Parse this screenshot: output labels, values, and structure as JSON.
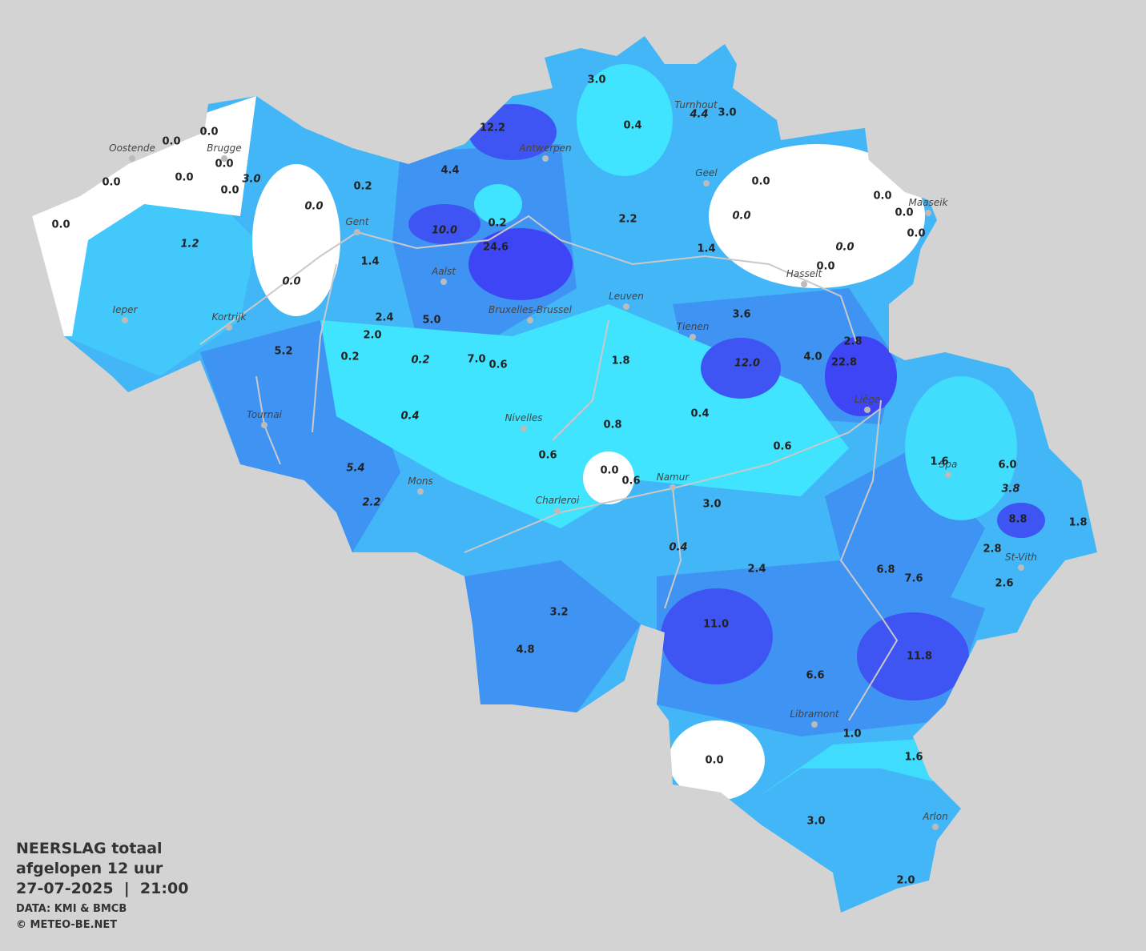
{
  "title": {
    "line1": "NEERSLAG totaal",
    "line2": "afgelopen 12 uur",
    "datetime": "27-07-2025  |  21:00"
  },
  "credits": [
    "DATA: KMI & BMCB",
    "© METEO-BE.NET"
  ],
  "cities": [
    "Oostende",
    "Brugge",
    "Antwerpen",
    "Turnhout",
    "Geel",
    "Maaseik",
    "Gent",
    "Aalst",
    "Hasselt",
    "Leuven",
    "Ieper",
    "Kortrijk",
    "Bruxelles-Brussel",
    "Tienen",
    "Liège",
    "Tournai",
    "Nivelles",
    "Spa",
    "Namur",
    "Mons",
    "Charleroi",
    "St-Vith",
    "Libramont",
    "Arlon"
  ],
  "readings": [
    {
      "text": "3.0",
      "italic": false
    },
    {
      "text": "0.4",
      "italic": false
    },
    {
      "text": "4.4",
      "italic": true
    },
    {
      "text": "3.0",
      "italic": false
    },
    {
      "text": "12.2",
      "italic": false
    },
    {
      "text": "0.0",
      "italic": false
    },
    {
      "text": "0.0",
      "italic": false
    },
    {
      "text": "0.0",
      "italic": false
    },
    {
      "text": "0.0",
      "italic": false
    },
    {
      "text": "3.0",
      "italic": true
    },
    {
      "text": "0.0",
      "italic": false
    },
    {
      "text": "0.0",
      "italic": false
    },
    {
      "text": "4.4",
      "italic": false
    },
    {
      "text": "0.2",
      "italic": false
    },
    {
      "text": "0.0",
      "italic": false
    },
    {
      "text": "0.0",
      "italic": false
    },
    {
      "text": "0.0",
      "italic": false
    },
    {
      "text": "0.0",
      "italic": false
    },
    {
      "text": "0.0",
      "italic": true
    },
    {
      "text": "0.2",
      "italic": false
    },
    {
      "text": "2.2",
      "italic": false
    },
    {
      "text": "0.0",
      "italic": true
    },
    {
      "text": "0.0",
      "italic": false
    },
    {
      "text": "10.0",
      "italic": true
    },
    {
      "text": "1.2",
      "italic": true
    },
    {
      "text": "24.6",
      "italic": false
    },
    {
      "text": "1.4",
      "italic": false
    },
    {
      "text": "0.0",
      "italic": true
    },
    {
      "text": "0.0",
      "italic": false
    },
    {
      "text": "1.4",
      "italic": false
    },
    {
      "text": "0.0",
      "italic": true
    },
    {
      "text": "3.6",
      "italic": false
    },
    {
      "text": "2.4",
      "italic": false
    },
    {
      "text": "5.0",
      "italic": false
    },
    {
      "text": "2.0",
      "italic": false
    },
    {
      "text": "5.2",
      "italic": false
    },
    {
      "text": "0.2",
      "italic": false
    },
    {
      "text": "0.2",
      "italic": true
    },
    {
      "text": "7.0",
      "italic": false
    },
    {
      "text": "0.6",
      "italic": false
    },
    {
      "text": "1.8",
      "italic": false
    },
    {
      "text": "12.0",
      "italic": true
    },
    {
      "text": "4.0",
      "italic": false
    },
    {
      "text": "22.8",
      "italic": false
    },
    {
      "text": "2.8",
      "italic": false
    },
    {
      "text": "0.4",
      "italic": true
    },
    {
      "text": "0.4",
      "italic": false
    },
    {
      "text": "0.8",
      "italic": false
    },
    {
      "text": "0.6",
      "italic": false
    },
    {
      "text": "0.6",
      "italic": false
    },
    {
      "text": "0.0",
      "italic": false
    },
    {
      "text": "0.6",
      "italic": false
    },
    {
      "text": "5.4",
      "italic": true
    },
    {
      "text": "1.6",
      "italic": false
    },
    {
      "text": "6.0",
      "italic": false
    },
    {
      "text": "3.8",
      "italic": true
    },
    {
      "text": "3.0",
      "italic": false
    },
    {
      "text": "2.2",
      "italic": true
    },
    {
      "text": "8.8",
      "italic": false
    },
    {
      "text": "1.8",
      "italic": false
    },
    {
      "text": "0.4",
      "italic": true
    },
    {
      "text": "2.8",
      "italic": false
    },
    {
      "text": "2.4",
      "italic": false
    },
    {
      "text": "6.8",
      "italic": false
    },
    {
      "text": "7.6",
      "italic": false
    },
    {
      "text": "2.6",
      "italic": false
    },
    {
      "text": "3.2",
      "italic": false
    },
    {
      "text": "11.0",
      "italic": false
    },
    {
      "text": "4.8",
      "italic": false
    },
    {
      "text": "11.8",
      "italic": false
    },
    {
      "text": "6.6",
      "italic": false
    },
    {
      "text": "1.0",
      "italic": false
    },
    {
      "text": "1.6",
      "italic": false
    },
    {
      "text": "0.0",
      "italic": false
    },
    {
      "text": "3.0",
      "italic": false
    },
    {
      "text": "2.0",
      "italic": false
    }
  ]
}
